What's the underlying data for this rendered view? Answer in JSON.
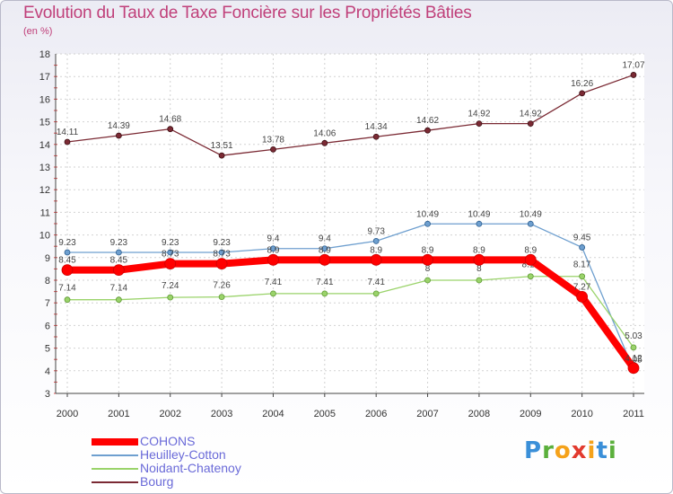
{
  "title": "Evolution du Taux de Taxe Foncière sur les Propriétés Bâties",
  "subtitle": "(en %)",
  "logo": {
    "letters": [
      "P",
      "r",
      "o",
      "x",
      "i",
      "t",
      "i"
    ],
    "colors": [
      "#3a8fd8",
      "#5bb03c",
      "#f5a21a",
      "#e23a2e",
      "#f5a21a",
      "#3a8fd8",
      "#5bb03c"
    ]
  },
  "chart_data": {
    "type": "line",
    "title": "Evolution du Taux de Taxe Foncière sur les Propriétés Bâties",
    "ylabel": "(en %)",
    "xlabel": "",
    "x": [
      "2000",
      "2001",
      "2002",
      "2003",
      "2004",
      "2005",
      "2006",
      "2007",
      "2008",
      "2009",
      "2010",
      "2011"
    ],
    "ylim": [
      3,
      18
    ],
    "yticks": [
      "3",
      "4",
      "5",
      "6",
      "7",
      "8",
      "9",
      "10",
      "11",
      "12",
      "13",
      "14",
      "15",
      "16",
      "17",
      "18"
    ],
    "grid": true,
    "legend_position": "bottom-left",
    "series": [
      {
        "name": "Bourg",
        "color": "#7b2a34",
        "values": [
          14.11,
          14.39,
          14.68,
          13.51,
          13.78,
          14.06,
          14.34,
          14.62,
          14.92,
          14.92,
          16.26,
          17.07
        ],
        "labels": [
          "14.11",
          "14.39",
          "14.68",
          "13.51",
          "13.78",
          "14.06",
          "14.34",
          "14.62",
          "14.92",
          "14.92",
          "16.26",
          "17.07"
        ]
      },
      {
        "name": "Heuilley-Cotton",
        "color": "#6e9fcf",
        "values": [
          9.23,
          9.23,
          9.23,
          9.23,
          9.4,
          9.4,
          9.73,
          10.49,
          10.49,
          10.49,
          9.45,
          4.05
        ],
        "labels": [
          "9.23",
          "9.23",
          "9.23",
          "9.23",
          "9.4",
          "9.4",
          "9.73",
          "10.49",
          "10.49",
          "10.49",
          "9.45",
          "4.05"
        ]
      },
      {
        "name": "Noidant-Chatenoy",
        "color": "#9ad36a",
        "values": [
          7.14,
          7.14,
          7.24,
          7.26,
          7.41,
          7.41,
          7.41,
          8,
          8,
          8.17,
          8.17,
          5.03
        ],
        "labels": [
          "7.14",
          "7.14",
          "7.24",
          "7.26",
          "7.41",
          "7.41",
          "7.41",
          "8",
          "8",
          "8.17",
          "8.17",
          "5.03"
        ]
      },
      {
        "name": "COHONS",
        "color": "#ff0000",
        "values": [
          8.45,
          8.45,
          8.73,
          8.73,
          8.9,
          8.9,
          8.9,
          8.9,
          8.9,
          8.9,
          7.27,
          4.12
        ],
        "labels": [
          "8.45",
          "8.45",
          "8.73",
          "8.73",
          "8.9",
          "8.9",
          "8.9",
          "8.9",
          "8.9",
          "8.9",
          "7.27",
          "4.12"
        ]
      }
    ],
    "legend": [
      "COHONS",
      "Heuilley-Cotton",
      "Noidant-Chatenoy",
      "Bourg"
    ]
  }
}
